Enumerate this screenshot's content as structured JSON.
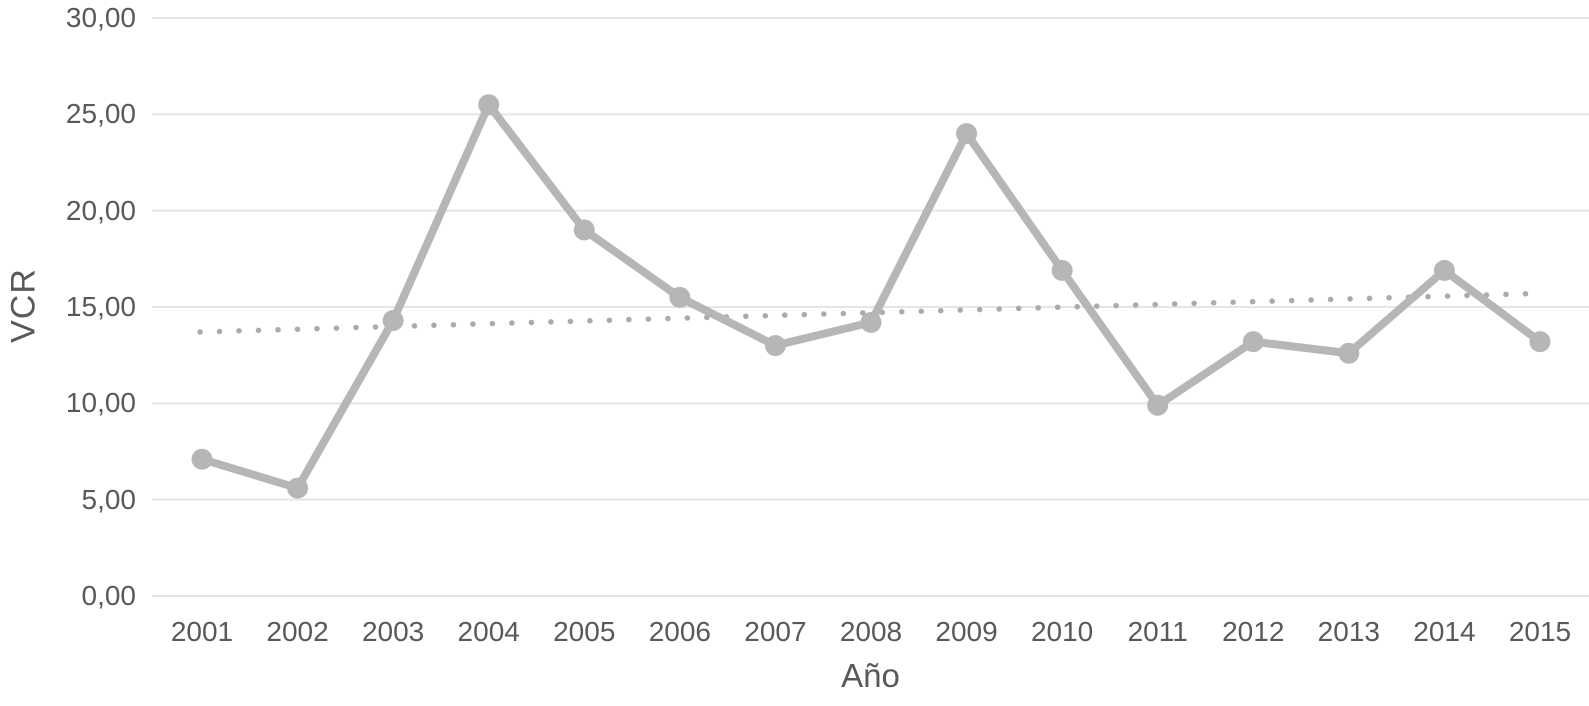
{
  "chart_data": {
    "type": "line",
    "title": "",
    "xlabel": "Año",
    "ylabel": "VCR",
    "categories": [
      "2001",
      "2002",
      "2003",
      "2004",
      "2005",
      "2006",
      "2007",
      "2008",
      "2009",
      "2010",
      "2011",
      "2012",
      "2013",
      "2014",
      "2015"
    ],
    "series": [
      {
        "name": "VCR",
        "values": [
          7.1,
          5.6,
          14.3,
          25.5,
          19.0,
          15.5,
          13.0,
          14.2,
          24.0,
          16.9,
          9.9,
          13.2,
          12.6,
          16.9,
          13.2
        ]
      }
    ],
    "trendline": {
      "type": "linear",
      "style": "dotted",
      "start_value": 13.7,
      "end_value": 15.7
    },
    "ylim": [
      0,
      30
    ],
    "ytick_step": 5,
    "ytick_labels": [
      "0,00",
      "5,00",
      "10,00",
      "15,00",
      "20,00",
      "25,00",
      "30,00"
    ],
    "grid": true,
    "legend": "none",
    "colors": {
      "series": "#b4b6b8",
      "marker": "#b4b6b8",
      "trendline": "#a9abad",
      "gridline": "#e5e5e5",
      "text": "#595959",
      "background": "#ffffff"
    }
  }
}
